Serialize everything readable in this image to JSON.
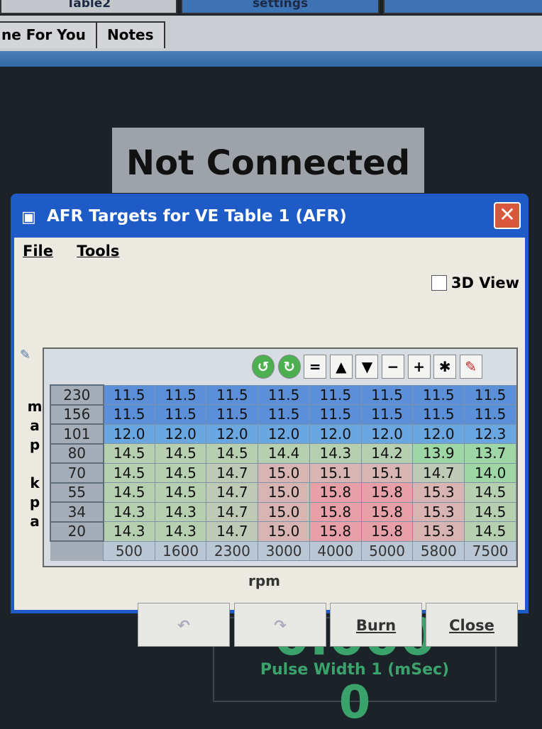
{
  "top_tabs": [
    "Table2",
    "settings",
    ""
  ],
  "sub_tabs": [
    "ne For You",
    "Notes"
  ],
  "status": "Not Connected",
  "dialog": {
    "title": "AFR Targets for VE Table 1 (AFR)",
    "menu": [
      "File",
      "Tools"
    ],
    "view_3d": {
      "label": "3D View",
      "checked": false
    },
    "toolbar": [
      {
        "icon": "rotate-left-icon",
        "glyph": "↺"
      },
      {
        "icon": "rotate-right-icon",
        "glyph": "↻"
      },
      {
        "icon": "equals-icon",
        "glyph": "="
      },
      {
        "icon": "increase-icon",
        "glyph": "▲"
      },
      {
        "icon": "decrease-icon",
        "glyph": "▼"
      },
      {
        "icon": "minus-icon",
        "glyph": "−"
      },
      {
        "icon": "plus-icon",
        "glyph": "+"
      },
      {
        "icon": "multiply-icon",
        "glyph": "✱"
      },
      {
        "icon": "pen-icon",
        "glyph": "✎"
      }
    ],
    "y_axis_label": "map kpa",
    "x_axis_label": "rpm",
    "map_kpa": [
      "230",
      "156",
      "101",
      "80",
      "70",
      "55",
      "34",
      "20"
    ],
    "rpm": [
      "500",
      "1600",
      "2300",
      "3000",
      "4000",
      "5000",
      "5800",
      "7500"
    ],
    "afr": [
      [
        "11.5",
        "11.5",
        "11.5",
        "11.5",
        "11.5",
        "11.5",
        "11.5",
        "11.5"
      ],
      [
        "11.5",
        "11.5",
        "11.5",
        "11.5",
        "11.5",
        "11.5",
        "11.5",
        "11.5"
      ],
      [
        "12.0",
        "12.0",
        "12.0",
        "12.0",
        "12.0",
        "12.0",
        "12.0",
        "12.3"
      ],
      [
        "14.5",
        "14.5",
        "14.5",
        "14.4",
        "14.3",
        "14.2",
        "13.9",
        "13.7"
      ],
      [
        "14.5",
        "14.5",
        "14.7",
        "15.0",
        "15.1",
        "15.1",
        "14.7",
        "14.0"
      ],
      [
        "14.5",
        "14.5",
        "14.7",
        "15.0",
        "15.8",
        "15.8",
        "15.3",
        "14.5"
      ],
      [
        "14.3",
        "14.3",
        "14.7",
        "15.0",
        "15.8",
        "15.8",
        "15.3",
        "14.5"
      ],
      [
        "14.3",
        "14.3",
        "14.7",
        "15.0",
        "15.8",
        "15.8",
        "15.3",
        "14.5"
      ]
    ],
    "buttons": {
      "undo": "",
      "redo": "",
      "burn": "Burn",
      "close": "Close"
    }
  },
  "gauge": {
    "value": "0.000",
    "label": "Pulse Width 1 (mSec)",
    "value2": "0"
  },
  "colors": {
    "rich": "#5d92dc",
    "mid": "#a8d8ae",
    "lean": "#e8a4aa",
    "title_bar": "#1e5bc6"
  }
}
